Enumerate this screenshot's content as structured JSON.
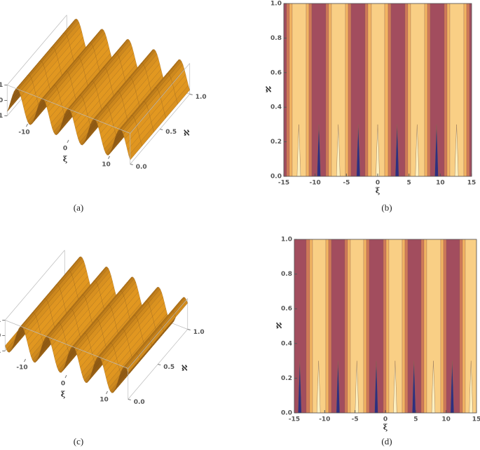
{
  "chart_data": [
    {
      "type": "surface3d",
      "caption": "(a)",
      "xlabel": "ξ",
      "ylabel": "ℵ",
      "xlim": [
        -15,
        15
      ],
      "ylim": [
        0,
        1
      ],
      "zlim": [
        -1,
        1
      ],
      "xticks": [
        -10,
        0,
        10
      ],
      "yticks": [
        {
          "value": 0,
          "label": "0.0"
        },
        {
          "value": 0.5,
          "label": "0.5"
        },
        {
          "value": 1,
          "label": "1.0"
        }
      ],
      "zticks": [
        -1,
        0,
        1
      ],
      "maxima": [
        -12.6,
        -6.3,
        0,
        6.3,
        12.6
      ],
      "colors": [
        "#f5a623",
        "#7a4a10"
      ]
    },
    {
      "type": "contour",
      "caption": "(b)",
      "xlabel": "ξ",
      "ylabel": "ℵ",
      "xlim": [
        -15,
        15
      ],
      "ylim": [
        0,
        1
      ],
      "xticks": [
        -15,
        -10,
        -5,
        0,
        5,
        10,
        15
      ],
      "yticks": [
        {
          "value": 0,
          "label": "0.0"
        },
        {
          "value": 0.2,
          "label": "0.2"
        },
        {
          "value": 0.4,
          "label": "0.4"
        },
        {
          "value": 0.6,
          "label": "0.6"
        },
        {
          "value": 0.8,
          "label": "0.8"
        },
        {
          "value": 1,
          "label": "1.0"
        }
      ],
      "maxima": [
        -12.6,
        -6.3,
        0,
        6.3,
        12.6
      ],
      "minima": [
        -9.4,
        -3.1,
        3.1,
        9.4
      ],
      "spike_height": 0.3,
      "colors": [
        "#a24d5e",
        "#d07a58",
        "#f2b462",
        "#f9cf85"
      ],
      "spike_colors": [
        "#2e2e80",
        "#fdf0c0"
      ]
    },
    {
      "type": "surface3d",
      "caption": "(c)",
      "xlabel": "ξ",
      "ylabel": "ℵ",
      "xlim": [
        -15,
        15
      ],
      "ylim": [
        0,
        1
      ],
      "zlim": [
        -1,
        1
      ],
      "xticks": [
        -10,
        0,
        10
      ],
      "yticks": [
        {
          "value": 0,
          "label": "0.0"
        },
        {
          "value": 0.5,
          "label": "0.5"
        },
        {
          "value": 1,
          "label": "1.0"
        }
      ],
      "zticks": [
        -1,
        0,
        1
      ],
      "maxima": [
        -11,
        -4.7,
        1.6,
        7.9,
        14.1
      ],
      "colors": [
        "#f5a623",
        "#7a4a10"
      ]
    },
    {
      "type": "contour",
      "caption": "(d)",
      "xlabel": "ξ",
      "ylabel": "ℵ",
      "xlim": [
        -15,
        15
      ],
      "ylim": [
        0,
        1
      ],
      "xticks": [
        -15,
        -10,
        -5,
        0,
        5,
        10,
        15
      ],
      "yticks": [
        {
          "value": 0,
          "label": "0.0"
        },
        {
          "value": 0.2,
          "label": "0.2"
        },
        {
          "value": 0.4,
          "label": "0.4"
        },
        {
          "value": 0.6,
          "label": "0.6"
        },
        {
          "value": 0.8,
          "label": "0.8"
        },
        {
          "value": 1,
          "label": "1.0"
        }
      ],
      "maxima": [
        -11,
        -4.7,
        1.6,
        7.9,
        14.1
      ],
      "minima": [
        -14.1,
        -7.8,
        -1.5,
        4.7,
        11
      ],
      "spike_height": 0.3,
      "colors": [
        "#a24d5e",
        "#d07a58",
        "#f2b462",
        "#f9cf85"
      ],
      "spike_colors": [
        "#2e2e80",
        "#fdf0c0"
      ]
    }
  ]
}
